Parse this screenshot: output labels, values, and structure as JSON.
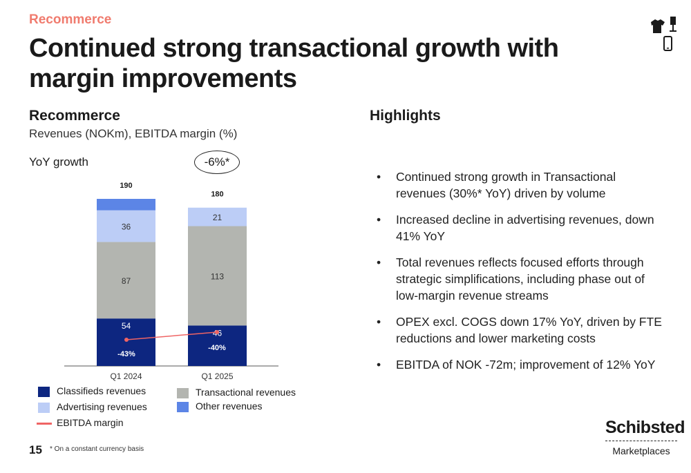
{
  "header": {
    "section_label": "Recommerce",
    "title": "Continued strong transactional growth with margin improvements"
  },
  "chart_panel": {
    "title": "Recommerce",
    "subtitle": "Revenues (NOKm), EBITDA margin (%)",
    "yoy_label": "YoY growth",
    "yoy_value": "-6%*"
  },
  "chart_data": {
    "type": "bar",
    "stacked": true,
    "categories": [
      "Q1 2024",
      "Q1 2025"
    ],
    "totals": [
      190,
      180
    ],
    "series": [
      {
        "name": "Classifieds revenues",
        "color": "#0d2680",
        "values": [
          54,
          46
        ],
        "labels": [
          "54",
          "46"
        ]
      },
      {
        "name": "Transactional revenues",
        "color": "#b3b5b0",
        "values": [
          87,
          113
        ],
        "labels": [
          "87",
          "113"
        ]
      },
      {
        "name": "Advertising revenues",
        "color": "#bccdf6",
        "values": [
          36,
          21
        ],
        "labels": [
          "36",
          "21"
        ]
      },
      {
        "name": "Other revenues",
        "color": "#5c85e6",
        "values": [
          13,
          0
        ],
        "labels": [
          "",
          ""
        ]
      }
    ],
    "line_series": {
      "name": "EBITDA margin",
      "color": "#ef6464",
      "values": [
        -43,
        -40
      ],
      "labels": [
        "-43%",
        "-40%"
      ]
    },
    "ylim": [
      0,
      190
    ],
    "grid": false,
    "legend": [
      {
        "name": "Classifieds revenues",
        "kind": "swatch",
        "color": "#0d2680"
      },
      {
        "name": "Advertising revenues",
        "kind": "swatch",
        "color": "#bccdf6"
      },
      {
        "name": "EBITDA margin",
        "kind": "line",
        "color": "#ef6464"
      },
      {
        "name": "Transactional revenues",
        "kind": "swatch",
        "color": "#b3b5b0"
      },
      {
        "name": "Other revenues",
        "kind": "swatch",
        "color": "#5c85e6"
      }
    ],
    "legend_placement": "bottom"
  },
  "highlights": {
    "title": "Highlights",
    "items": [
      "Continued strong growth in Transactional revenues (30%* YoY) driven by volume",
      "Increased decline in advertising revenues, down 41% YoY",
      "Total revenues reflects focused efforts through strategic simplifications, including phase out of low-margin revenue streams",
      "OPEX excl. COGS down 17% YoY, driven by FTE reductions and lower marketing costs",
      "EBITDA of NOK -72m; improvement of 12% YoY"
    ]
  },
  "footer": {
    "page_number": "15",
    "footnote": "* On a constant currency basis",
    "brand_name": "Schibsted",
    "brand_sub": "Marketplaces"
  },
  "icons": [
    "tshirt-icon",
    "lamp-icon",
    "phone-icon"
  ]
}
